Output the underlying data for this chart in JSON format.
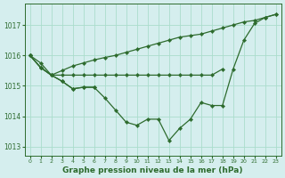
{
  "bg_color": "#d5eeee",
  "line_color": "#2d6b2d",
  "grid_color": "#aaddcc",
  "xlabel": "Graphe pression niveau de la mer (hPa)",
  "xlim": [
    -0.5,
    23.5
  ],
  "ylim": [
    1012.7,
    1017.7
  ],
  "yticks": [
    1013,
    1014,
    1015,
    1016,
    1017
  ],
  "xticks": [
    0,
    1,
    2,
    3,
    4,
    5,
    6,
    7,
    8,
    9,
    10,
    11,
    12,
    13,
    14,
    15,
    16,
    17,
    18,
    19,
    20,
    21,
    22,
    23
  ],
  "line_short": [
    1016.0,
    1015.75,
    1015.35,
    1015.15,
    1014.9,
    1014.95,
    1014.95,
    null,
    null,
    null,
    null,
    null,
    null,
    null,
    null,
    null,
    null,
    null,
    null,
    null,
    null,
    null,
    null,
    null
  ],
  "line_flat": [
    1016.0,
    1015.6,
    1015.35,
    1015.35,
    1015.35,
    1015.35,
    1015.35,
    1015.35,
    1015.35,
    1015.35,
    1015.35,
    1015.35,
    1015.35,
    1015.35,
    1015.35,
    1015.35,
    1015.35,
    1015.35,
    1015.55,
    null,
    null,
    null,
    null,
    null
  ],
  "line_diag": [
    1016.0,
    1015.6,
    1015.35,
    1015.5,
    1015.65,
    1015.75,
    1015.85,
    1015.93,
    1016.0,
    1016.1,
    1016.2,
    1016.3,
    1016.4,
    1016.5,
    1016.6,
    1016.65,
    1016.7,
    1016.8,
    1016.9,
    1017.0,
    1017.1,
    1017.15,
    1017.25,
    1017.35
  ],
  "line_dip": [
    1016.0,
    1015.6,
    1015.35,
    1015.15,
    1014.9,
    1014.95,
    1014.95,
    1014.6,
    1014.2,
    1013.8,
    1013.7,
    1013.9,
    1013.9,
    1013.2,
    1013.6,
    1013.9,
    1014.45,
    1014.35,
    1014.35,
    1015.55,
    1016.5,
    1017.05,
    1017.25,
    1017.35
  ]
}
